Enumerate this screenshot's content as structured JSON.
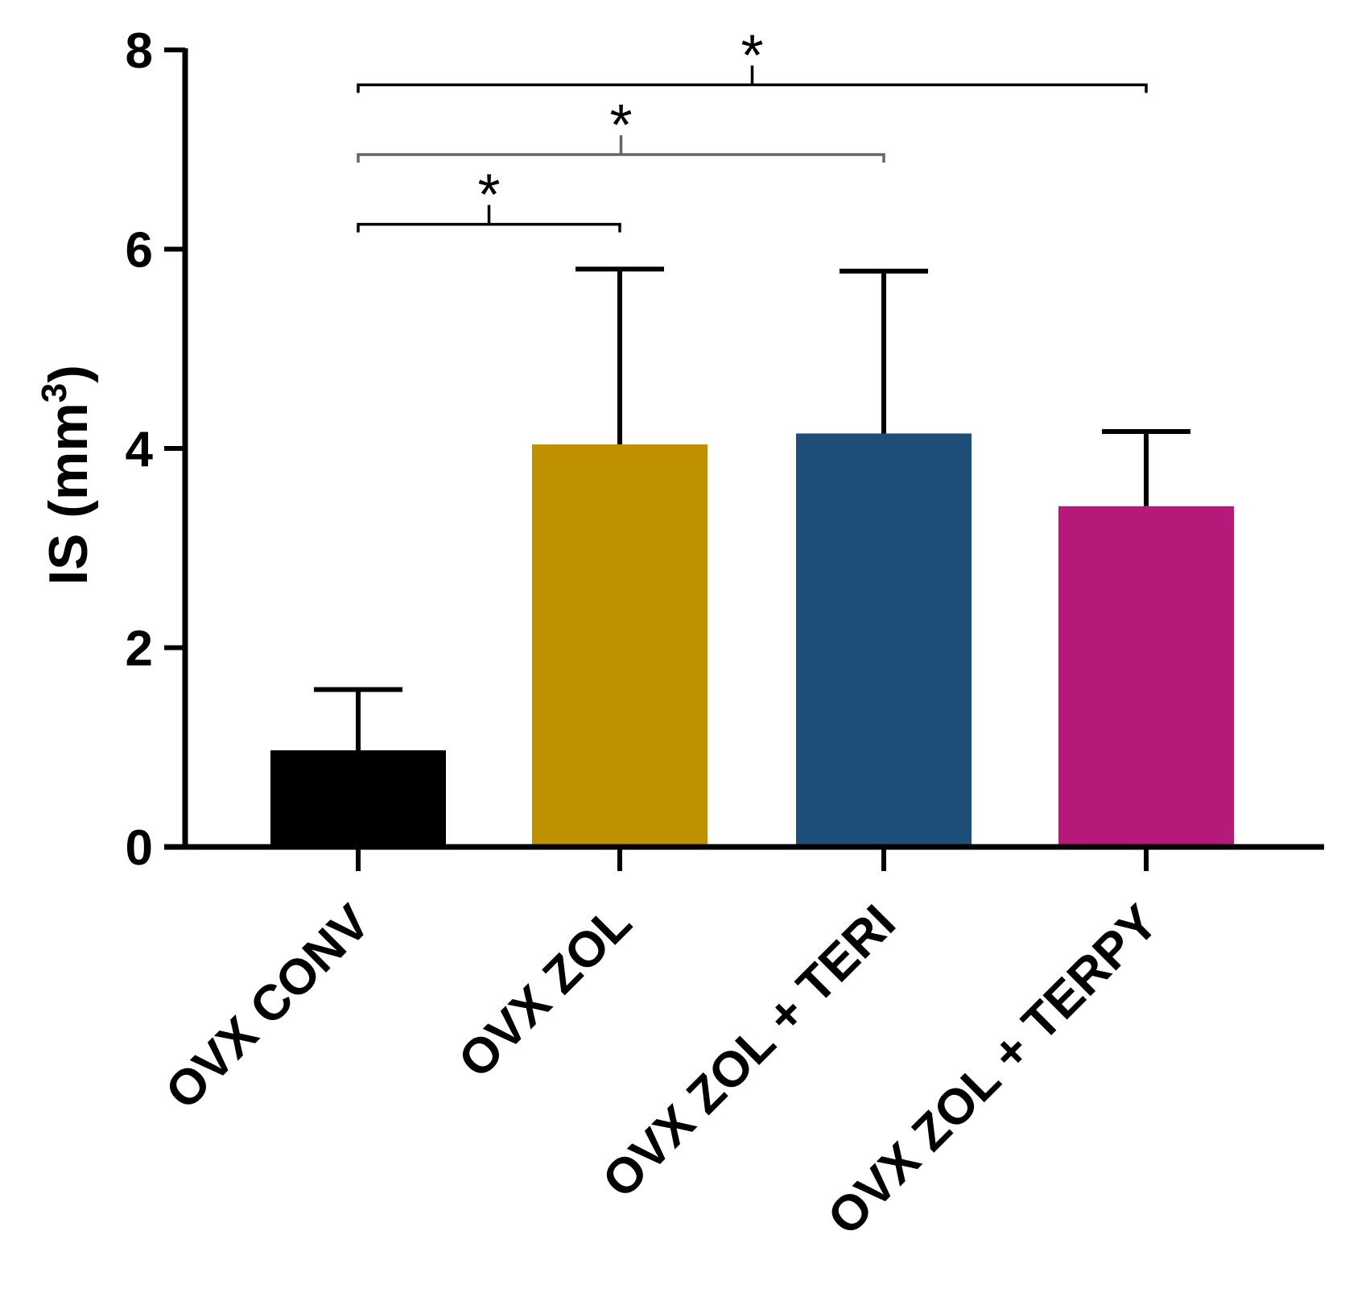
{
  "chart_data": {
    "type": "bar",
    "title": "",
    "xlabel": "",
    "ylabel": "IS (mm",
    "ylabel_superscript": "3",
    "ylabel_suffix": ")",
    "ylim": [
      0,
      8
    ],
    "yticks": [
      0,
      2,
      4,
      6,
      8
    ],
    "yticks_labels": [
      "0",
      "2",
      "4",
      "6",
      "8"
    ],
    "grid": false,
    "categories": [
      "OVX CONV",
      "OVX ZOL",
      "OVX ZOL + TERI",
      "OVX ZOL + TERPY"
    ],
    "values": [
      0.97,
      4.04,
      4.15,
      3.42
    ],
    "error_upper": [
      1.58,
      5.8,
      5.78,
      4.17
    ],
    "colors": [
      "#000000",
      "#bf9000",
      "#1f4e79",
      "#b5197a"
    ],
    "significance": [
      {
        "from": 0,
        "to": 1,
        "y": 6.25,
        "label": "*",
        "stroke": "#000000"
      },
      {
        "from": 0,
        "to": 2,
        "y": 6.95,
        "label": "*",
        "stroke": "#666666"
      },
      {
        "from": 0,
        "to": 3,
        "y": 7.65,
        "label": "*",
        "stroke": "#000000"
      }
    ]
  }
}
